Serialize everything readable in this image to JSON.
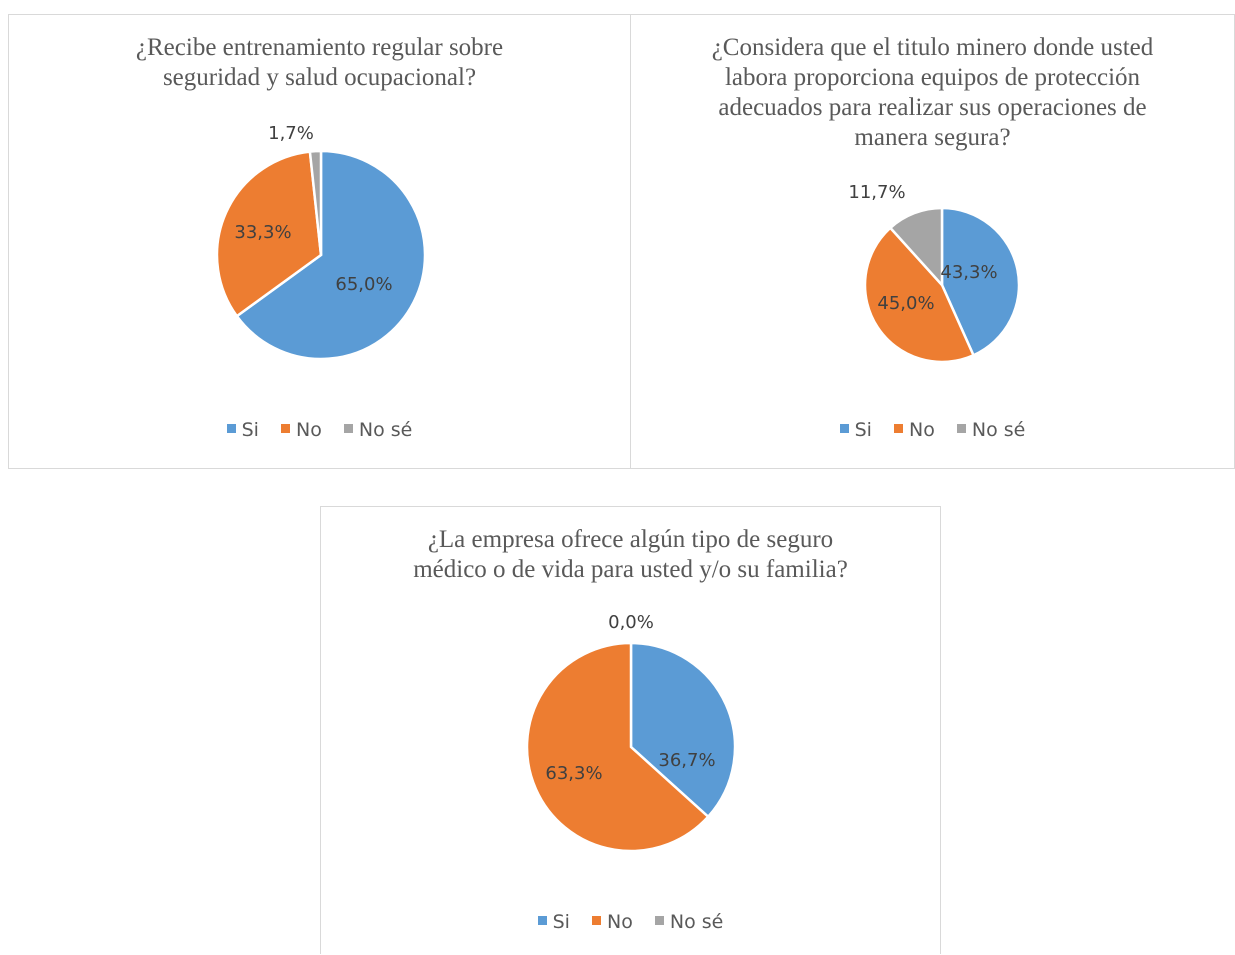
{
  "colors": {
    "Si": "#5b9bd5",
    "No": "#ed7d31",
    "No sé": "#a5a5a5"
  },
  "legend": [
    "Si",
    "No",
    "No sé"
  ],
  "chart_data": [
    {
      "type": "pie",
      "title": "¿Recibe entrenamiento regular sobre seguridad y salud ocupacional?",
      "title_lines": [
        "¿Recibe entrenamiento regular sobre",
        "seguridad y salud ocupacional?"
      ],
      "categories": [
        "Si",
        "No",
        "No sé"
      ],
      "values": [
        65.0,
        33.3,
        1.7
      ],
      "labels": [
        "65,0%",
        "33,3%",
        "1,7%"
      ],
      "legend_position": "bottom"
    },
    {
      "type": "pie",
      "title": "¿Considera que el titulo minero donde usted labora proporciona equipos de protección adecuados para realizar sus operaciones de manera segura?",
      "title_lines": [
        "¿Considera que el titulo minero donde usted",
        "labora proporciona equipos de protección",
        "adecuados para realizar sus operaciones de",
        "manera segura?"
      ],
      "categories": [
        "Si",
        "No",
        "No sé"
      ],
      "values": [
        43.3,
        45.0,
        11.7
      ],
      "labels": [
        "43,3%",
        "45,0%",
        "11,7%"
      ],
      "legend_position": "bottom"
    },
    {
      "type": "pie",
      "title": "¿La empresa ofrece algún tipo de seguro médico o de vida para usted y/o su familia?",
      "title_lines": [
        "¿La empresa ofrece algún tipo de seguro",
        "médico o de vida para usted y/o su familia?"
      ],
      "categories": [
        "Si",
        "No",
        "No sé"
      ],
      "values": [
        36.7,
        63.3,
        0.0
      ],
      "labels": [
        "36,7%",
        "63,3%",
        "0,0%"
      ],
      "legend_position": "bottom"
    }
  ]
}
